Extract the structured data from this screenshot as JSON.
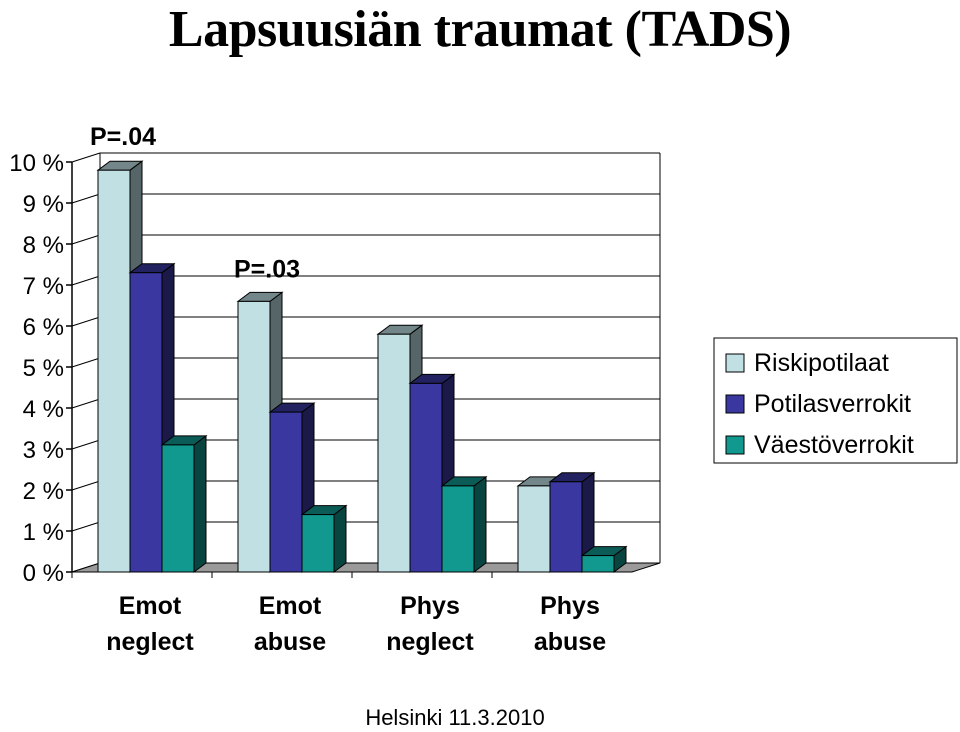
{
  "footer": "Helsinki 11.3.2010",
  "chart_data": {
    "type": "bar",
    "title": "Lapsuusiän traumat (TADS)",
    "xlabel": "",
    "ylabel": "",
    "ylim": [
      0,
      10
    ],
    "yticks": [
      "0 %",
      "1 %",
      "2 %",
      "3 %",
      "4 %",
      "5 %",
      "6 %",
      "7 %",
      "8 %",
      "9 %",
      "10 %"
    ],
    "categories": [
      {
        "line1": "Emot",
        "line2": "neglect"
      },
      {
        "line1": "Emot",
        "line2": "abuse"
      },
      {
        "line1": "Phys",
        "line2": "neglect"
      },
      {
        "line1": "Phys",
        "line2": "abuse"
      }
    ],
    "series": [
      {
        "name": "Riskipotilaat",
        "color": "#c0e0e4",
        "values": [
          9.8,
          6.6,
          5.8,
          2.1
        ]
      },
      {
        "name": "Potilasverrokit",
        "color": "#3a38a0",
        "values": [
          7.3,
          3.9,
          4.6,
          2.2
        ]
      },
      {
        "name": "Väestöverrokit",
        "color": "#12998f",
        "values": [
          3.1,
          1.4,
          2.1,
          0.4
        ]
      }
    ],
    "annotations": [
      {
        "text": "P=.04",
        "category": 0
      },
      {
        "text": "P=.03",
        "category": 1
      }
    ],
    "grid": true,
    "legend_position": "right"
  }
}
